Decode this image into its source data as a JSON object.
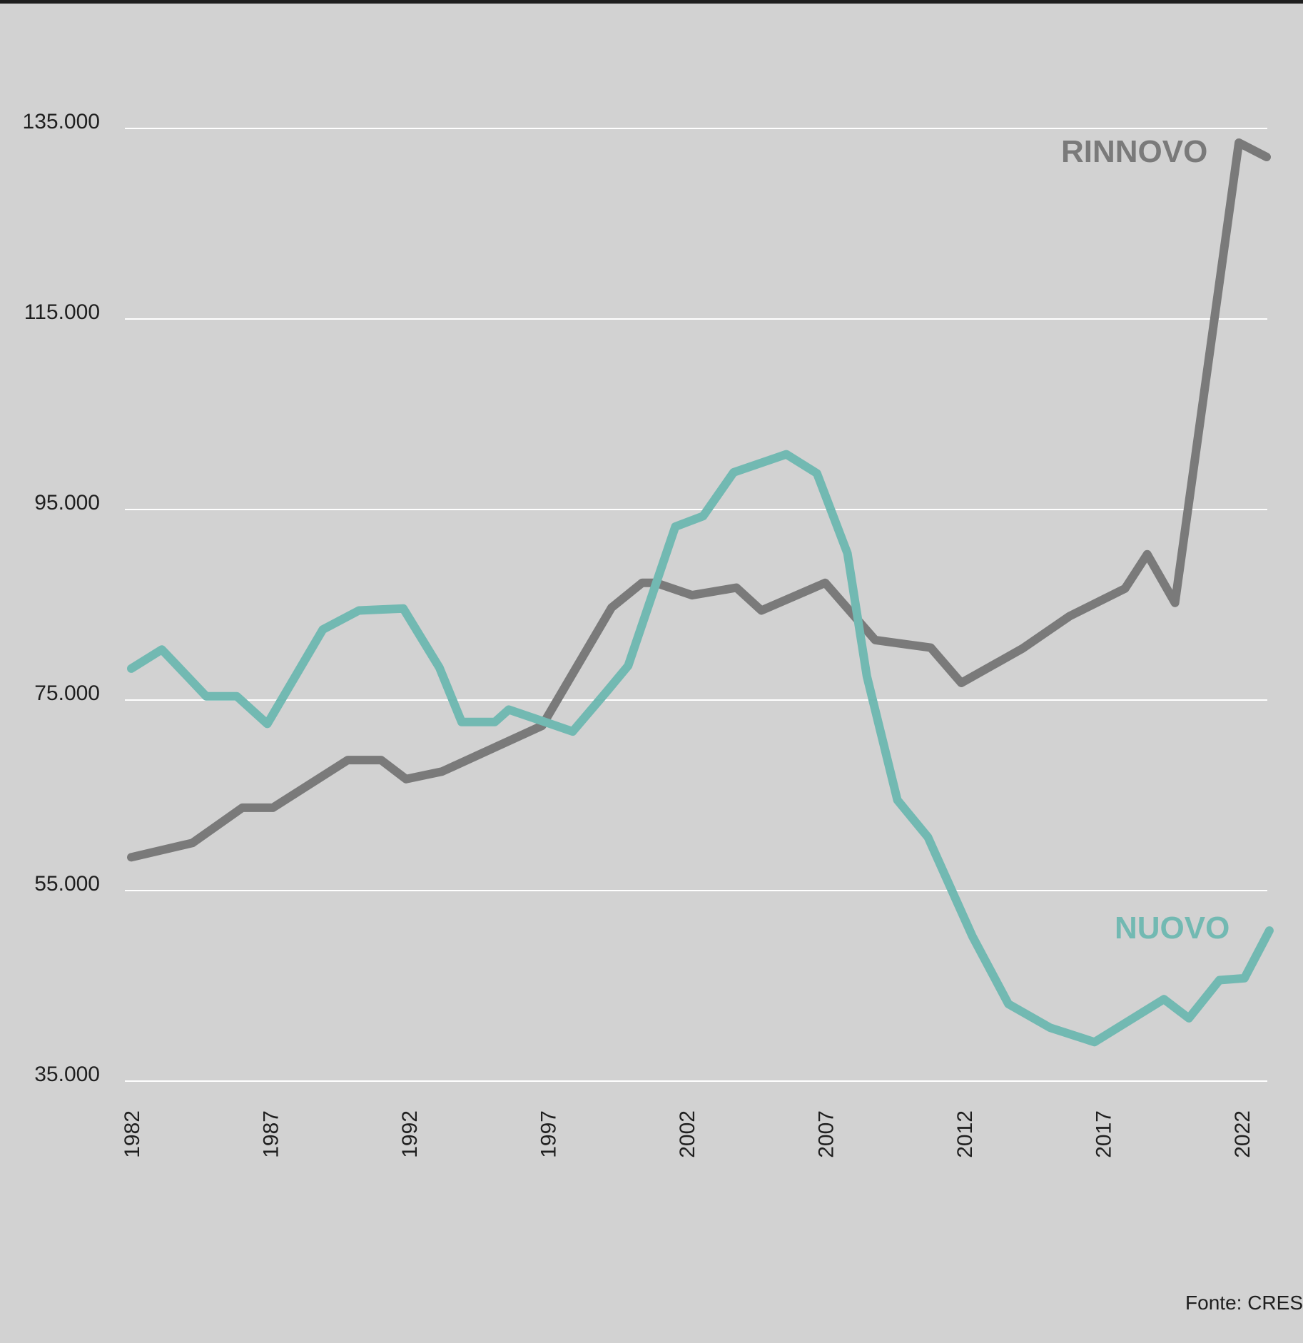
{
  "chart_data": {
    "type": "line",
    "title": "",
    "xlabel": "",
    "ylabel": "",
    "ylim": [
      35000,
      135000
    ],
    "xlim": [
      1982,
      2023
    ],
    "grid": "horizontal",
    "y_ticks": [
      {
        "value": 35000,
        "label": "35.000"
      },
      {
        "value": 55000,
        "label": "55.000"
      },
      {
        "value": 75000,
        "label": "75.000"
      },
      {
        "value": 95000,
        "label": "95.000"
      },
      {
        "value": 115000,
        "label": "115.000"
      },
      {
        "value": 135000,
        "label": "135.000"
      }
    ],
    "x_ticks": [
      {
        "value": 1982,
        "label": "1982"
      },
      {
        "value": 1987,
        "label": "1987"
      },
      {
        "value": 1992,
        "label": "1992"
      },
      {
        "value": 1997,
        "label": "1997"
      },
      {
        "value": 2002,
        "label": "2002"
      },
      {
        "value": 2007,
        "label": "2007"
      },
      {
        "value": 2012,
        "label": "2012"
      },
      {
        "value": 2017,
        "label": "2017"
      },
      {
        "value": 2022,
        "label": "2022"
      }
    ],
    "series": [
      {
        "name": "RINNOVO",
        "color": "#7a7a7a",
        "points": [
          [
            1982,
            58500
          ],
          [
            1984.2,
            60000
          ],
          [
            1986,
            63700
          ],
          [
            1987.1,
            63700
          ],
          [
            1989.8,
            68700
          ],
          [
            1991,
            68700
          ],
          [
            1991.9,
            66700
          ],
          [
            1993.2,
            67500
          ],
          [
            1996.8,
            72300
          ],
          [
            1999.3,
            84700
          ],
          [
            2000.4,
            87300
          ],
          [
            2000.9,
            87300
          ],
          [
            2002.2,
            86000
          ],
          [
            2003.8,
            86800
          ],
          [
            2004.7,
            84400
          ],
          [
            2007,
            87300
          ],
          [
            2008.8,
            81300
          ],
          [
            2010.8,
            80500
          ],
          [
            2011.9,
            76800
          ],
          [
            2014.1,
            80400
          ],
          [
            2015.8,
            83800
          ],
          [
            2017.8,
            86700
          ],
          [
            2018.6,
            90300
          ],
          [
            2019.6,
            85200
          ],
          [
            2021.9,
            133500
          ],
          [
            2022.9,
            132000
          ]
        ]
      },
      {
        "name": "NUOVO",
        "color": "#72b9b2",
        "points": [
          [
            1982,
            78300
          ],
          [
            1983.1,
            80300
          ],
          [
            1984.7,
            75400
          ],
          [
            1985.8,
            75400
          ],
          [
            1986.9,
            72500
          ],
          [
            1988.9,
            82400
          ],
          [
            1990.2,
            84400
          ],
          [
            1991.8,
            84600
          ],
          [
            1993.1,
            78400
          ],
          [
            1993.9,
            72700
          ],
          [
            1995.1,
            72700
          ],
          [
            1995.6,
            74000
          ],
          [
            1996.9,
            72700
          ],
          [
            1997.9,
            71700
          ],
          [
            1999.1,
            75800
          ],
          [
            1999.9,
            78600
          ],
          [
            2001.6,
            93200
          ],
          [
            2002.6,
            94300
          ],
          [
            2003.7,
            98900
          ],
          [
            2005.6,
            100800
          ],
          [
            2006.7,
            98800
          ],
          [
            2007.8,
            90400
          ],
          [
            2008.5,
            77500
          ],
          [
            2009.6,
            64500
          ],
          [
            2010.7,
            60600
          ],
          [
            2012.3,
            50200
          ],
          [
            2013.6,
            43100
          ],
          [
            2015.1,
            40600
          ],
          [
            2016.7,
            39100
          ],
          [
            2019.2,
            43600
          ],
          [
            2020.1,
            41600
          ],
          [
            2021.2,
            45600
          ],
          [
            2022.1,
            45800
          ],
          [
            2023,
            50800
          ]
        ]
      }
    ],
    "annotations": [
      {
        "text": "RINNOVO",
        "color": "#7a7a7a"
      },
      {
        "text": "NUOVO",
        "color": "#72b9b2"
      }
    ]
  },
  "source_text": "Fonte: CRES"
}
